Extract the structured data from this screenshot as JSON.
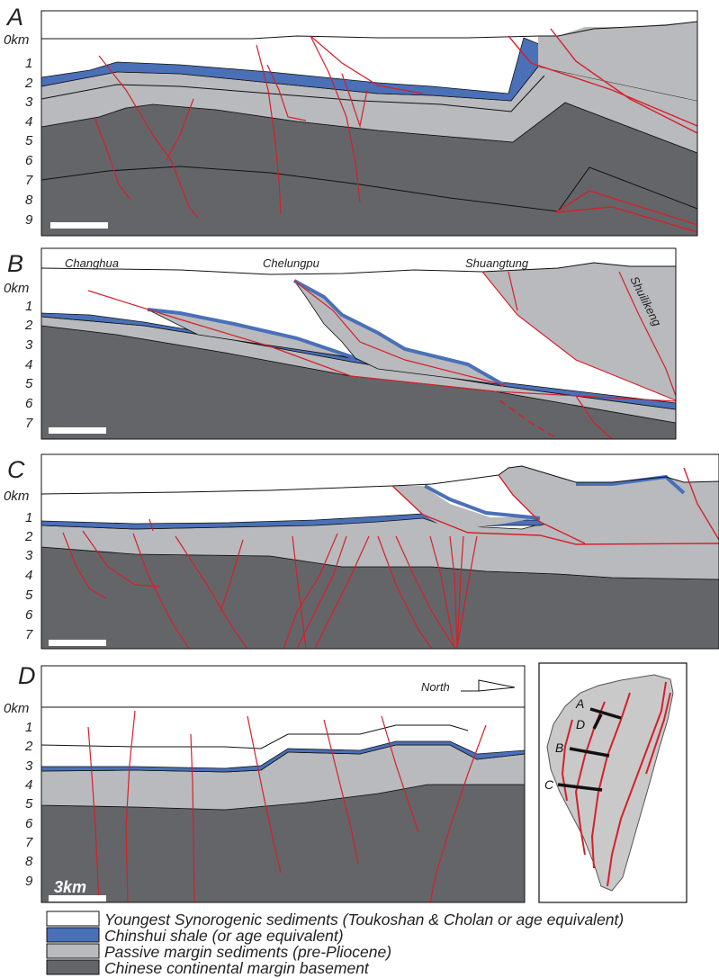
{
  "colors": {
    "synorogenic": "#ffffff",
    "chinshui_shale": "#4a70b8",
    "passive_margin": "#b9babd",
    "basement": "#646569",
    "fault": "#d4202b"
  },
  "panels": {
    "A": {
      "letter": "A",
      "depths": [
        "0km",
        "1",
        "2",
        "3",
        "4",
        "5",
        "6",
        "7",
        "8",
        "9"
      ]
    },
    "B": {
      "letter": "B",
      "depths": [
        "0km",
        "1",
        "2",
        "3",
        "4",
        "5",
        "6",
        "7"
      ],
      "places": [
        "Changhua",
        "Chelungpu",
        "Shuangtung",
        "Shuilikeng"
      ]
    },
    "C": {
      "letter": "C",
      "depths": [
        "0km",
        "1",
        "2",
        "3",
        "4",
        "5",
        "6",
        "7"
      ]
    },
    "D": {
      "letter": "D",
      "depths": [
        "0km",
        "1",
        "2",
        "3",
        "4",
        "5",
        "6",
        "7",
        "8",
        "9"
      ],
      "north_label": "North",
      "scale_label": "3km"
    }
  },
  "map": {
    "labels": [
      "A",
      "D",
      "B",
      "C"
    ]
  },
  "legend": [
    {
      "label": "Youngest Synorogenic sediments (Toukoshan & Cholan or age equivalent)",
      "color": "#ffffff"
    },
    {
      "label": "Chinshui shale (or age equivalent)",
      "color": "#4a70b8"
    },
    {
      "label": "Passive margin sediments (pre-Pliocene)",
      "color": "#b9babd"
    },
    {
      "label": "Chinese continental margin basement",
      "color": "#646569"
    }
  ]
}
